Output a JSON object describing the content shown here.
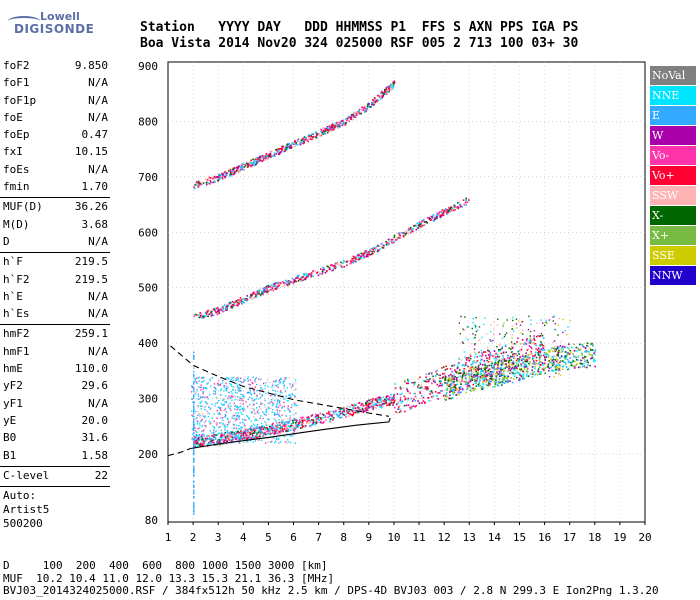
{
  "logo": {
    "line1": "Lowell",
    "line2": "DIGISONDE"
  },
  "header": {
    "labels": "Station   YYYY DAY   DDD HHMMSS P1  FFS S AXN PPS IGA PS",
    "values": "Boa Vista 2014 Nov20 324 025000 RSF 005 2 713 100 03+ 30"
  },
  "params": {
    "g1": [
      {
        "k": "foF2",
        "v": "9.850"
      },
      {
        "k": "foF1",
        "v": "N/A"
      },
      {
        "k": "foF1p",
        "v": "N/A"
      },
      {
        "k": "foE",
        "v": "N/A"
      },
      {
        "k": "foEp",
        "v": "0.47"
      },
      {
        "k": "fxI",
        "v": "10.15"
      },
      {
        "k": "foEs",
        "v": "N/A"
      },
      {
        "k": "fmin",
        "v": "1.70"
      }
    ],
    "g2": [
      {
        "k": "MUF(D)",
        "v": "36.26"
      },
      {
        "k": "M(D)",
        "v": "3.68"
      },
      {
        "k": "D",
        "v": "N/A"
      }
    ],
    "g3": [
      {
        "k": "h`F",
        "v": "219.5"
      },
      {
        "k": "h`F2",
        "v": "219.5"
      },
      {
        "k": "h`E",
        "v": "N/A"
      },
      {
        "k": "h`Es",
        "v": "N/A"
      }
    ],
    "g4": [
      {
        "k": "hmF2",
        "v": "259.1"
      },
      {
        "k": "hmF1",
        "v": "N/A"
      },
      {
        "k": "hmE",
        "v": "110.0"
      },
      {
        "k": "yF2",
        "v": "29.6"
      },
      {
        "k": "yF1",
        "v": "N/A"
      },
      {
        "k": "yE",
        "v": "20.0"
      },
      {
        "k": "B0",
        "v": "31.6"
      },
      {
        "k": "B1",
        "v": "1.58"
      }
    ],
    "g5": [
      {
        "k": "C-level",
        "v": "22"
      }
    ]
  },
  "auto": {
    "line1": "Auto:",
    "line2": "Artist5",
    "line3": "500200"
  },
  "legend": [
    {
      "label": "NoVal",
      "color": "#808080"
    },
    {
      "label": "NNE",
      "color": "#00e5ff"
    },
    {
      "label": "E",
      "color": "#33aaff"
    },
    {
      "label": "W",
      "color": "#aa00aa"
    },
    {
      "label": "Vo-",
      "color": "#ff33aa"
    },
    {
      "label": "Vo+",
      "color": "#ff0033"
    },
    {
      "label": "SSW",
      "color": "#ffb3b3"
    },
    {
      "label": "X-",
      "color": "#006600"
    },
    {
      "label": "X+",
      "color": "#77bb44"
    },
    {
      "label": "SSE",
      "color": "#cccc00"
    },
    {
      "label": "NNW",
      "color": "#2200cc"
    }
  ],
  "chart_data": {
    "type": "scatter",
    "x_ticks": [
      "1",
      "2",
      "3",
      "4",
      "5",
      "6",
      "7",
      "8",
      "9",
      "10",
      "11",
      "12",
      "13",
      "14",
      "15",
      "16",
      "17",
      "18",
      "19",
      "20"
    ],
    "y_ticks": [
      "80",
      "200",
      "300",
      "400",
      "500",
      "600",
      "700",
      "800",
      "900"
    ],
    "xlim": [
      1,
      20
    ],
    "ylim_label_values": [
      80,
      900
    ],
    "traces": [
      {
        "name": "O-trace F2 (1st hop)",
        "color_key": "Vo+",
        "points": [
          [
            2.0,
            222
          ],
          [
            3,
            228
          ],
          [
            4,
            236
          ],
          [
            5,
            245
          ],
          [
            6,
            255
          ],
          [
            7,
            265
          ],
          [
            8,
            276
          ],
          [
            9,
            290
          ],
          [
            10,
            300
          ],
          [
            11,
            315
          ],
          [
            12,
            332
          ],
          [
            13,
            350
          ],
          [
            14,
            365
          ],
          [
            15,
            380
          ],
          [
            16,
            392
          ]
        ]
      },
      {
        "name": "F2 2nd hop",
        "color_key": "Vo+",
        "points": [
          [
            2.0,
            448
          ],
          [
            3,
            460
          ],
          [
            4,
            480
          ],
          [
            5,
            500
          ],
          [
            6,
            515
          ],
          [
            7,
            530
          ],
          [
            8,
            545
          ],
          [
            9,
            565
          ],
          [
            10,
            590
          ],
          [
            11,
            615
          ],
          [
            12,
            638
          ],
          [
            13,
            660
          ]
        ]
      },
      {
        "name": "F2 3rd hop",
        "color_key": "Vo+",
        "points": [
          [
            2.0,
            685
          ],
          [
            3,
            700
          ],
          [
            4,
            720
          ],
          [
            5,
            740
          ],
          [
            6,
            760
          ],
          [
            7,
            780
          ],
          [
            8,
            800
          ],
          [
            9,
            830
          ],
          [
            10,
            870
          ]
        ]
      },
      {
        "name": "X-trace",
        "color_key": "X+",
        "points": [
          [
            12,
            320
          ],
          [
            13,
            335
          ],
          [
            14,
            345
          ],
          [
            15,
            355
          ],
          [
            16,
            370
          ],
          [
            17,
            378
          ],
          [
            18,
            380
          ]
        ]
      }
    ],
    "profile_curves": [
      {
        "name": "electron density profile",
        "style": "solid",
        "points": [
          [
            1.9,
            210
          ],
          [
            3,
            218
          ],
          [
            5,
            230
          ],
          [
            7,
            243
          ],
          [
            8.5,
            252
          ],
          [
            9.8,
            258
          ],
          [
            9.85,
            265
          ]
        ]
      },
      {
        "name": "profile extrapolation",
        "style": "dashed",
        "points": [
          [
            1.1,
            395
          ],
          [
            2,
            360
          ],
          [
            3,
            340
          ],
          [
            4,
            322
          ],
          [
            5,
            310
          ],
          [
            6,
            298
          ],
          [
            7,
            290
          ],
          [
            8,
            282
          ],
          [
            9,
            274
          ],
          [
            9.8,
            268
          ]
        ]
      },
      {
        "name": "lower extrapolation",
        "style": "dashed",
        "points": [
          [
            1.0,
            197
          ],
          [
            1.5,
            203
          ],
          [
            1.9,
            210
          ]
        ]
      }
    ]
  },
  "footer": {
    "line1": "D     100  200  400  600  800 1000 1500 3000 [km]",
    "line2": "MUF  10.2 10.4 11.0 12.0 13.3 15.3 21.1 36.3 [MHz]",
    "line3": "BVJ03_2014324025000.RSF / 384fx512h 50 kHz 2.5 km / DPS-4D BVJ03 003 / 2.8 N 299.3 E Ion2Png 1.3.20"
  }
}
